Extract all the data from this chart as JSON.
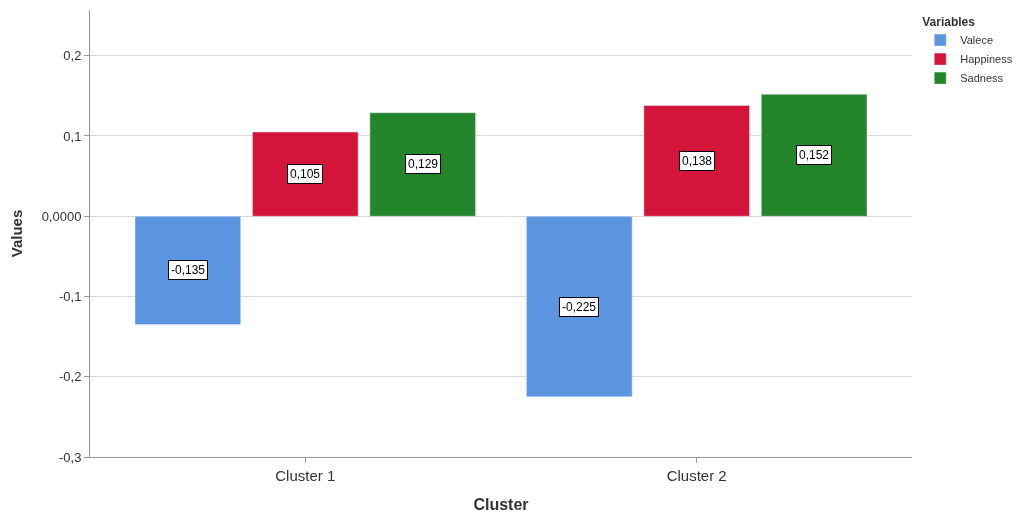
{
  "chart_data": {
    "type": "bar",
    "xlabel": "Cluster",
    "ylabel": "Values",
    "legend_title": "Variables",
    "categories": [
      "Cluster 1",
      "Cluster 2"
    ],
    "series": [
      {
        "name": "Valece",
        "color": "#5b95e0",
        "values": [
          -0.135,
          -0.225
        ],
        "value_labels": [
          "-0,135",
          "-0,225"
        ]
      },
      {
        "name": "Happiness",
        "color": "#d4143a",
        "values": [
          0.105,
          0.138
        ],
        "value_labels": [
          "0,105",
          "0,138"
        ]
      },
      {
        "name": "Sadness",
        "color": "#24852a",
        "values": [
          0.129,
          0.152
        ],
        "value_labels": [
          "0,129",
          "0,152"
        ]
      }
    ],
    "ylim": [
      -0.3,
      0.257
    ],
    "yticks": [
      {
        "value": -0.3,
        "label": "-0,3"
      },
      {
        "value": -0.2,
        "label": "-0,2"
      },
      {
        "value": -0.1,
        "label": "-0,1"
      },
      {
        "value": 0,
        "label": "0,0000"
      },
      {
        "value": 0.1,
        "label": "0,1"
      },
      {
        "value": 0.2,
        "label": "0,2"
      }
    ],
    "grid": "y",
    "legend": "top right"
  }
}
